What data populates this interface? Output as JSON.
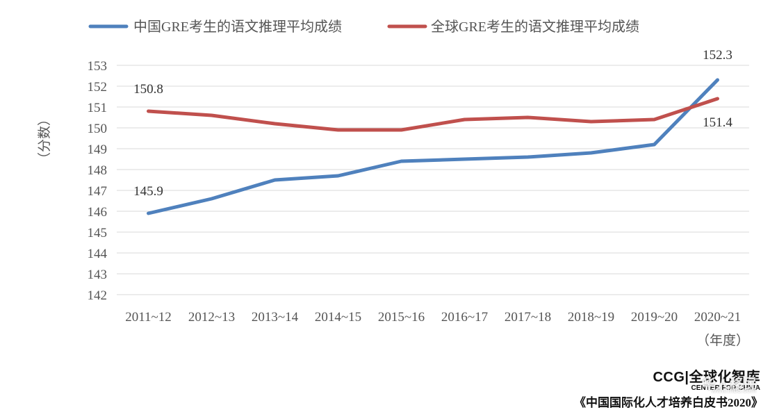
{
  "chart_data": {
    "type": "line",
    "categories": [
      "2011~12",
      "2012~13",
      "2013~14",
      "2014~15",
      "2015~16",
      "2016~17",
      "2017~18",
      "2018~19",
      "2019~20",
      "2020~21"
    ],
    "series": [
      {
        "name": "中国GRE考生的语文推理平均成绩",
        "color": "#4f81bd",
        "values": [
          145.9,
          146.6,
          147.5,
          147.7,
          148.4,
          148.5,
          148.6,
          148.8,
          149.2,
          152.3
        ]
      },
      {
        "name": "全球GRE考生的语文推理平均成绩",
        "color": "#c0504d",
        "values": [
          150.8,
          150.6,
          150.2,
          149.9,
          149.9,
          150.4,
          150.5,
          150.3,
          150.4,
          151.4
        ]
      }
    ],
    "data_labels": [
      {
        "series": 0,
        "index": 0,
        "text": "145.9"
      },
      {
        "series": 0,
        "index": 9,
        "text": "152.3"
      },
      {
        "series": 1,
        "index": 0,
        "text": "150.8"
      },
      {
        "series": 1,
        "index": 9,
        "text": "151.4"
      }
    ],
    "ylabel": "（分数）",
    "xlabel": "（年度）",
    "ylim": [
      142,
      153
    ],
    "ytick_step": 1,
    "grid": true,
    "legend_position": "top"
  },
  "branding": {
    "logo": "CCG|全球化智库",
    "logo_sub": "CENTER FOR CHINA",
    "source": "《中国国际化人才培养白皮书2020》",
    "watermark": "华人移民",
    "watermark_url": "www.ihb8.com"
  }
}
